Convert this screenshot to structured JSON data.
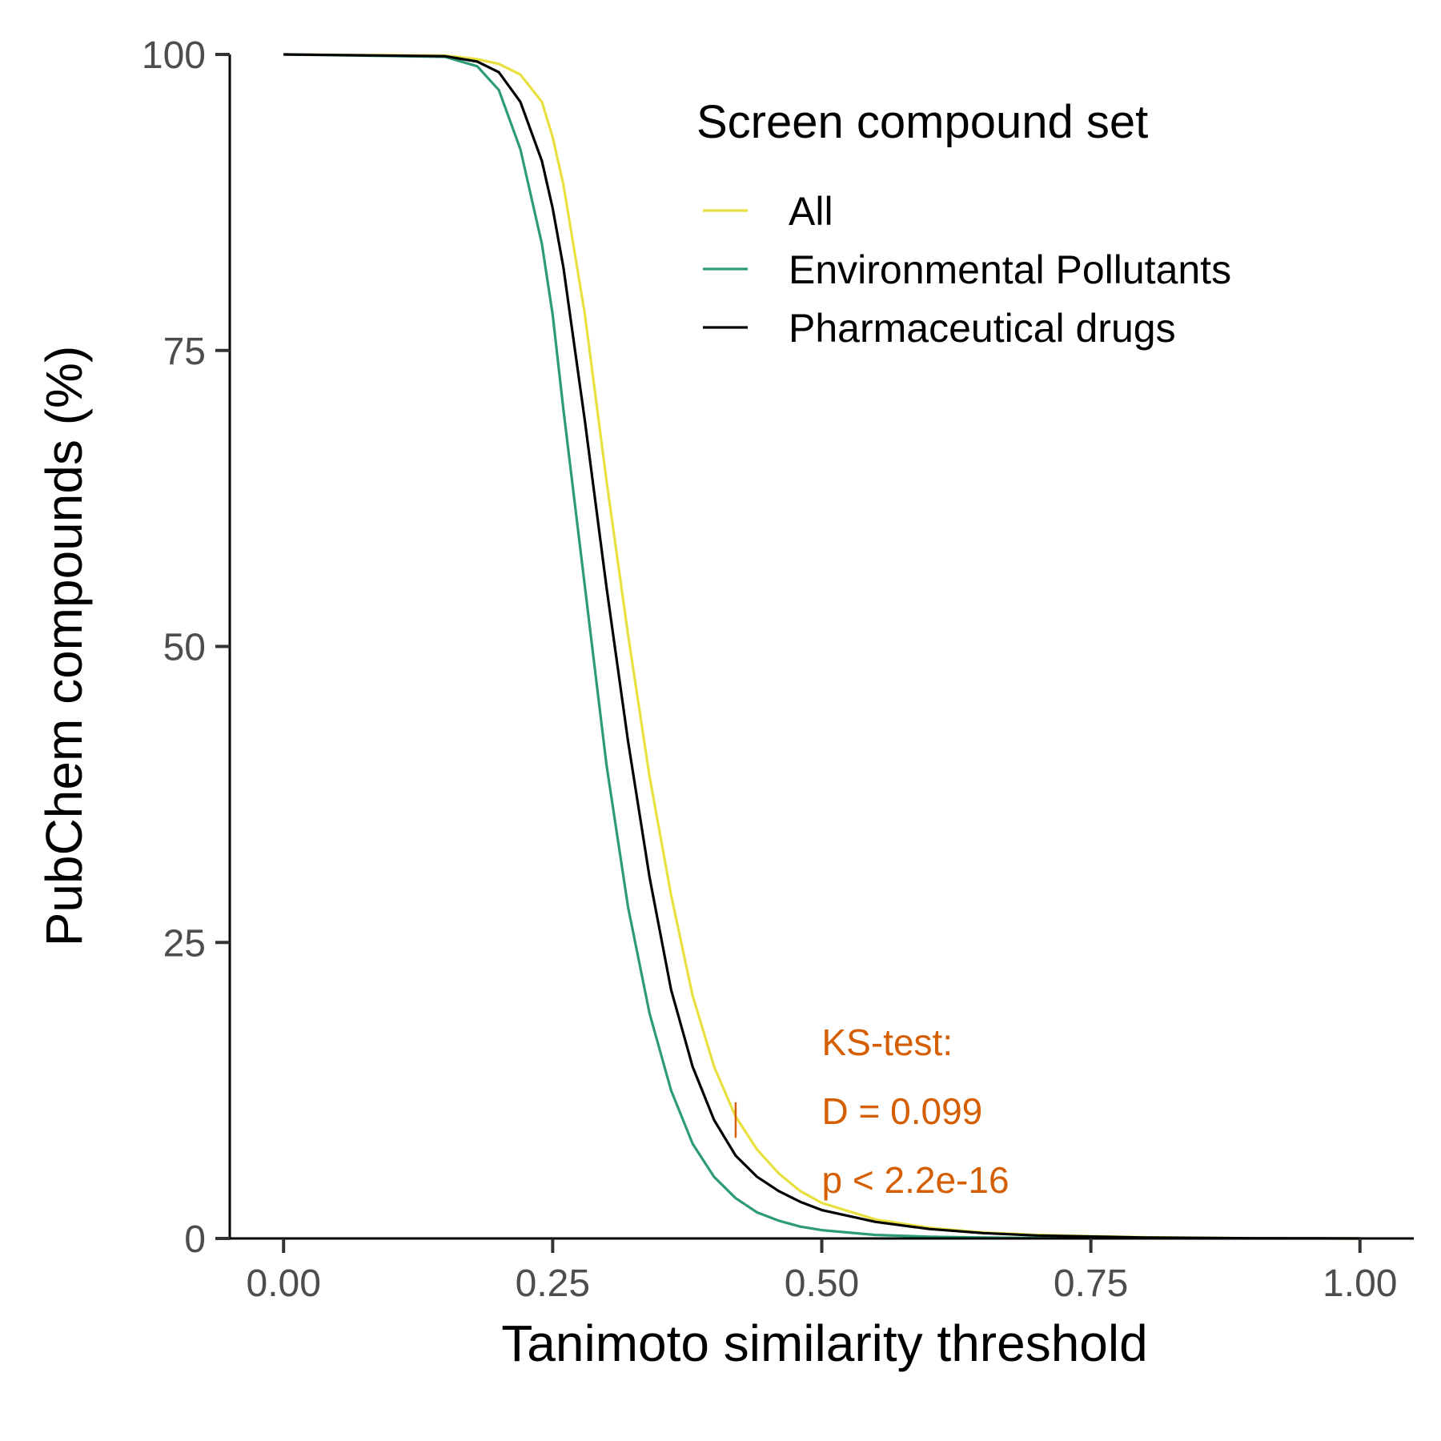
{
  "chart_data": {
    "type": "line",
    "title": "",
    "xlabel": "Tanimoto similarity threshold",
    "ylabel": "PubChem compounds (%)",
    "xlim": [
      -0.05,
      1.05
    ],
    "ylim": [
      0,
      100
    ],
    "x_ticks": [
      0,
      0.25,
      0.5,
      0.75,
      1
    ],
    "x_tick_labels": [
      "0.00",
      "0.25",
      "0.50",
      "0.75",
      "1.00"
    ],
    "y_ticks": [
      0,
      25,
      50,
      75,
      100
    ],
    "y_tick_labels": [
      "0",
      "25",
      "50",
      "75",
      "100"
    ],
    "grid": false,
    "legend": {
      "title": "Screen compound set",
      "position": "top-right"
    },
    "series": [
      {
        "name": "All",
        "color": "#e8e03f",
        "x": [
          0,
          0.15,
          0.18,
          0.2,
          0.22,
          0.24,
          0.25,
          0.26,
          0.28,
          0.3,
          0.32,
          0.34,
          0.36,
          0.38,
          0.4,
          0.42,
          0.44,
          0.46,
          0.48,
          0.5,
          0.55,
          0.6,
          0.65,
          0.7,
          0.8,
          0.9,
          1.0
        ],
        "y": [
          100,
          99.9,
          99.6,
          99.2,
          98.3,
          96.0,
          93.0,
          89.0,
          78.0,
          64.0,
          51.0,
          39.0,
          29.0,
          20.5,
          14.5,
          10.3,
          7.5,
          5.5,
          4.0,
          3.0,
          1.6,
          0.9,
          0.5,
          0.3,
          0.1,
          0.02,
          0
        ]
      },
      {
        "name": "Environmental Pollutants",
        "color": "#2e9b78",
        "x": [
          0,
          0.15,
          0.18,
          0.2,
          0.22,
          0.24,
          0.25,
          0.26,
          0.28,
          0.3,
          0.32,
          0.34,
          0.36,
          0.38,
          0.4,
          0.42,
          0.44,
          0.46,
          0.48,
          0.5,
          0.55,
          0.6,
          0.65,
          0.7,
          0.8,
          0.9,
          1.0
        ],
        "y": [
          100,
          99.8,
          99.0,
          97.0,
          92.0,
          84.0,
          78.0,
          70.0,
          55.0,
          40.0,
          28.0,
          19.0,
          12.5,
          8.0,
          5.2,
          3.4,
          2.2,
          1.5,
          1.0,
          0.7,
          0.3,
          0.15,
          0.08,
          0.04,
          0.01,
          0,
          0
        ]
      },
      {
        "name": "Pharmaceutical drugs",
        "color": "#000000",
        "x": [
          0,
          0.15,
          0.18,
          0.2,
          0.22,
          0.24,
          0.25,
          0.26,
          0.28,
          0.3,
          0.32,
          0.34,
          0.36,
          0.38,
          0.4,
          0.42,
          0.44,
          0.46,
          0.48,
          0.5,
          0.55,
          0.6,
          0.65,
          0.7,
          0.8,
          0.9,
          1.0
        ],
        "y": [
          100,
          99.85,
          99.4,
          98.5,
          96.0,
          91.0,
          87.0,
          82.0,
          69.0,
          55.0,
          42.0,
          30.5,
          21.0,
          14.5,
          10.0,
          7.0,
          5.2,
          4.0,
          3.1,
          2.4,
          1.4,
          0.8,
          0.45,
          0.25,
          0.08,
          0.02,
          0
        ]
      }
    ],
    "annotation": {
      "lines": [
        "KS-test:",
        "D = 0.099",
        "p < 2.2e-16"
      ],
      "color": "#d55e00",
      "x": 0.5,
      "y": 15.5,
      "segment": {
        "x": 0.42,
        "y_from": 8.5,
        "y_to": 11.5
      }
    }
  }
}
